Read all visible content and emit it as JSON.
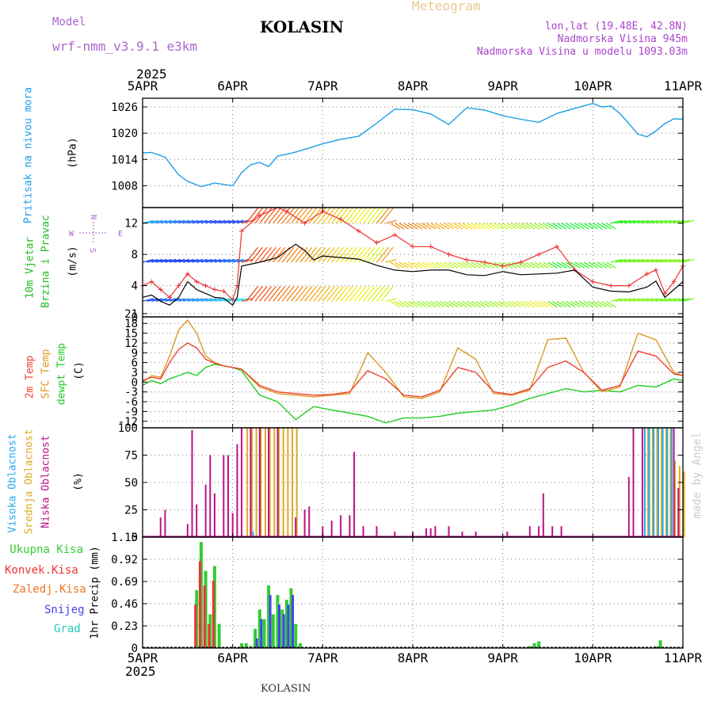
{
  "header": {
    "model_label": "Model",
    "model_name": "wrf-nmm_v3.9.1 e3km",
    "location_title": "KOLASIN",
    "meteogram_label": "Meteogram",
    "lonlat": "lon,lat (19.48E, 42.8N)",
    "altitude": "Nadmorska Visina 945m",
    "model_altitude": "Nadmorska Visina u modelu 1093.03m",
    "year": "2025",
    "footer_location": "KOLASIN",
    "credit": "made by Angel"
  },
  "colors": {
    "pressure": "#1e9ee6",
    "wind_label": "#22bb22",
    "gust": "#ee3333",
    "mean_wind": "#000000",
    "temp2m": "#ee4433",
    "sfc_temp": "#dd9922",
    "dewpt": "#22cc22",
    "cloud_high": "#22aaee",
    "cloud_mid": "#ddaa22",
    "cloud_low": "#bb1188",
    "precip_total": "#33cc33",
    "precip_conv": "#ee3333",
    "precip_frz": "#ee7722",
    "snow": "#4444ee",
    "hail": "#22ccbb"
  },
  "chart_data": [
    {
      "type": "line",
      "title": "Pritisak na nivou mora",
      "ylabel": "(hPa)",
      "x_ticks": [
        "5APR",
        "6APR",
        "7APR",
        "8APR",
        "9APR",
        "10APR",
        "11APR"
      ],
      "ylim": [
        1003,
        1028
      ],
      "y_ticks": [
        "1008",
        "1014",
        "1020",
        "1026"
      ],
      "series": [
        {
          "name": "Pritisak na nivou mora",
          "x": [
            0,
            0.1,
            0.25,
            0.4,
            0.5,
            0.65,
            0.8,
            1.0,
            1.1,
            1.2,
            1.3,
            1.4,
            1.5,
            1.6,
            1.7,
            1.8,
            2.0,
            2.2,
            2.4,
            2.6,
            2.8,
            3.0,
            3.2,
            3.4,
            3.6,
            3.8,
            4.0,
            4.2,
            4.4,
            4.6,
            4.8,
            5.0,
            5.1,
            5.2,
            5.3,
            5.4,
            5.5,
            5.6,
            5.7,
            5.8,
            5.9,
            6.0
          ],
          "values": [
            1015.5,
            1015.6,
            1014.5,
            1010.5,
            1009.0,
            1007.8,
            1008.6,
            1008.0,
            1011.0,
            1012.8,
            1013.3,
            1012.4,
            1014.8,
            1015.2,
            1015.7,
            1016.3,
            1017.6,
            1018.6,
            1019.3,
            1022.3,
            1025.5,
            1025.4,
            1024.4,
            1022.0,
            1025.8,
            1025.3,
            1024.0,
            1023.2,
            1022.5,
            1024.5,
            1025.7,
            1026.8,
            1026.0,
            1026.2,
            1024.5,
            1022.2,
            1019.8,
            1019.2,
            1020.5,
            1022.2,
            1023.3,
            1023.2
          ]
        }
      ]
    },
    {
      "type": "line",
      "title": "10m Vjetar Brzina i Pravac",
      "ylabel": "(m/s)",
      "ylim": [
        0,
        14
      ],
      "y_ticks": [
        "0",
        "4",
        "8",
        "12"
      ],
      "compass": [
        "N",
        "S",
        "W",
        "E"
      ],
      "series": [
        {
          "name": "Mean wind",
          "x": [
            0,
            0.1,
            0.2,
            0.3,
            0.4,
            0.5,
            0.6,
            0.7,
            0.8,
            0.9,
            1.0,
            1.05,
            1.1,
            1.3,
            1.5,
            1.6,
            1.7,
            1.8,
            1.9,
            2.0,
            2.2,
            2.4,
            2.6,
            2.8,
            3.0,
            3.2,
            3.4,
            3.6,
            3.8,
            4.0,
            4.2,
            4.4,
            4.6,
            4.8,
            5.0,
            5.2,
            5.4,
            5.6,
            5.7,
            5.8,
            5.9,
            6.0
          ],
          "values": [
            2.5,
            2.8,
            2.0,
            1.5,
            2.5,
            4.5,
            3.5,
            3.0,
            2.5,
            2.4,
            1.5,
            2.5,
            6.5,
            7.0,
            7.6,
            8.5,
            9.3,
            8.5,
            7.3,
            7.8,
            7.6,
            7.4,
            6.6,
            6.0,
            5.8,
            6.0,
            6.0,
            5.4,
            5.3,
            5.8,
            5.4,
            5.5,
            5.6,
            6.0,
            3.8,
            3.3,
            3.2,
            3.8,
            4.6,
            2.5,
            3.5,
            4.5
          ]
        },
        {
          "name": "Gust",
          "x": [
            0,
            0.1,
            0.2,
            0.3,
            0.4,
            0.5,
            0.6,
            0.7,
            0.8,
            0.9,
            1.0,
            1.05,
            1.1,
            1.3,
            1.5,
            1.6,
            1.8,
            2.0,
            2.2,
            2.4,
            2.6,
            2.8,
            3.0,
            3.2,
            3.4,
            3.6,
            3.8,
            4.0,
            4.2,
            4.4,
            4.6,
            4.8,
            5.0,
            5.2,
            5.4,
            5.6,
            5.7,
            5.8,
            5.9,
            6.0
          ],
          "values": [
            4.0,
            4.5,
            3.5,
            2.5,
            4.0,
            5.5,
            4.5,
            4.0,
            3.5,
            3.3,
            2.2,
            4.0,
            11.0,
            13.0,
            14.0,
            13.5,
            12.0,
            13.5,
            12.5,
            11.0,
            9.5,
            10.5,
            9.0,
            9.0,
            8.0,
            7.3,
            7.0,
            6.5,
            7.0,
            8.0,
            9.0,
            6.0,
            4.5,
            4.0,
            4.0,
            5.5,
            6.0,
            3.0,
            4.5,
            6.5
          ]
        }
      ]
    },
    {
      "type": "line",
      "title": "2m Temp / SFC Temp / dewpt Temp",
      "ylabel": "(C)",
      "ylim": [
        -14,
        20
      ],
      "y_ticks": [
        "-12",
        "-9",
        "-6",
        "-3",
        "0",
        "3",
        "6",
        "9",
        "12",
        "15",
        "18",
        "21"
      ],
      "series": [
        {
          "name": "2m Temp",
          "x": [
            0,
            0.1,
            0.2,
            0.3,
            0.4,
            0.5,
            0.6,
            0.7,
            0.8,
            0.9,
            1.0,
            1.1,
            1.3,
            1.5,
            1.7,
            1.9,
            2.1,
            2.3,
            2.5,
            2.7,
            2.9,
            3.1,
            3.3,
            3.5,
            3.7,
            3.9,
            4.1,
            4.3,
            4.5,
            4.7,
            4.9,
            5.1,
            5.3,
            5.5,
            5.7,
            5.9,
            6.0
          ],
          "values": [
            0.5,
            1.5,
            1.0,
            6.0,
            10.0,
            12.0,
            10.5,
            7.0,
            5.8,
            5.0,
            4.5,
            4.0,
            -1.0,
            -3.0,
            -3.5,
            -4.0,
            -3.8,
            -3.0,
            3.5,
            1.0,
            -4.0,
            -4.5,
            -2.5,
            4.5,
            3.0,
            -3.0,
            -3.8,
            -2.0,
            4.5,
            6.5,
            3.0,
            -2.5,
            -1.0,
            9.5,
            8.0,
            2.5,
            2.0
          ]
        },
        {
          "name": "SFC Temp",
          "x": [
            0,
            0.1,
            0.2,
            0.3,
            0.4,
            0.5,
            0.6,
            0.7,
            0.8,
            0.9,
            1.0,
            1.1,
            1.3,
            1.5,
            1.7,
            1.9,
            2.1,
            2.3,
            2.5,
            2.7,
            2.9,
            3.1,
            3.3,
            3.5,
            3.7,
            3.9,
            4.1,
            4.3,
            4.5,
            4.7,
            4.9,
            5.1,
            5.3,
            5.5,
            5.7,
            5.9,
            6.0
          ],
          "values": [
            0.0,
            2.0,
            1.5,
            8.0,
            16.0,
            19.0,
            15.0,
            8.0,
            6.0,
            5.0,
            4.5,
            4.0,
            -1.5,
            -3.5,
            -4.0,
            -4.5,
            -4.0,
            -3.5,
            9.0,
            3.0,
            -4.5,
            -5.0,
            -3.0,
            10.5,
            7.0,
            -3.5,
            -4.0,
            -2.5,
            13.0,
            13.5,
            3.0,
            -3.0,
            -1.5,
            15.0,
            13.0,
            3.0,
            2.0
          ]
        },
        {
          "name": "dewpt Temp",
          "x": [
            0,
            0.1,
            0.2,
            0.3,
            0.4,
            0.5,
            0.6,
            0.7,
            0.8,
            0.9,
            1.0,
            1.1,
            1.3,
            1.5,
            1.7,
            1.9,
            2.1,
            2.3,
            2.5,
            2.7,
            2.9,
            3.1,
            3.3,
            3.5,
            3.7,
            3.9,
            4.1,
            4.3,
            4.5,
            4.7,
            4.9,
            5.1,
            5.3,
            5.5,
            5.7,
            5.9,
            6.0
          ],
          "values": [
            -1.0,
            0.5,
            -0.5,
            1.0,
            2.0,
            3.0,
            2.0,
            4.5,
            5.5,
            5.0,
            4.5,
            3.5,
            -4.0,
            -6.0,
            -11.5,
            -7.5,
            -8.5,
            -9.5,
            -10.5,
            -12.5,
            -11.0,
            -11.0,
            -10.5,
            -9.5,
            -9.0,
            -8.5,
            -7.0,
            -5.0,
            -3.5,
            -2.0,
            -3.0,
            -2.5,
            -3.0,
            -1.0,
            -1.5,
            1.0,
            0.5
          ]
        }
      ]
    },
    {
      "type": "bar",
      "title": "Visoka / Srednja / Niska Oblacnost",
      "ylabel": "(%)",
      "ylim": [
        0,
        100
      ],
      "y_ticks": [
        "0",
        "25",
        "50",
        "75",
        "100"
      ],
      "series": [
        {
          "name": "Niska Oblacnost",
          "x": [
            0.2,
            0.25,
            0.5,
            0.55,
            0.6,
            0.7,
            0.75,
            0.8,
            0.9,
            0.95,
            1.0,
            1.05,
            1.1,
            1.2,
            1.3,
            1.4,
            1.5,
            1.7,
            1.8,
            1.85,
            2.0,
            2.1,
            2.2,
            2.3,
            2.35,
            2.45,
            2.6,
            2.8,
            3.0,
            3.15,
            3.2,
            3.25,
            3.4,
            3.55,
            3.7,
            4.05,
            4.3,
            4.4,
            4.45,
            4.55,
            4.65,
            5.4,
            5.45,
            5.55,
            5.9,
            5.95
          ],
          "values": [
            18,
            25,
            12,
            98,
            30,
            48,
            75,
            40,
            75,
            75,
            22,
            85,
            100,
            100,
            100,
            100,
            100,
            18,
            25,
            28,
            10,
            15,
            20,
            20,
            78,
            10,
            10,
            5,
            5,
            8,
            8,
            10,
            10,
            5,
            5,
            5,
            10,
            10,
            40,
            10,
            10,
            55,
            100,
            100,
            100,
            45
          ]
        },
        {
          "name": "Srednja Oblacnost",
          "x": [
            1.15,
            1.2,
            1.25,
            1.3,
            1.35,
            1.4,
            1.45,
            1.5,
            1.55,
            1.6,
            1.65,
            1.7,
            5.6,
            5.65,
            5.7,
            5.75,
            5.8,
            5.85,
            5.9,
            5.95,
            6.0
          ],
          "values": [
            100,
            100,
            100,
            100,
            100,
            100,
            100,
            100,
            100,
            100,
            100,
            100,
            100,
            100,
            100,
            100,
            100,
            100,
            70,
            65,
            60
          ]
        },
        {
          "name": "Visoka Oblacnost",
          "x": [
            1.2,
            5.55,
            5.6,
            5.65,
            5.7,
            5.75,
            5.8,
            5.85
          ],
          "values": [
            5,
            100,
            100,
            100,
            100,
            100,
            100,
            100
          ]
        }
      ]
    },
    {
      "type": "bar",
      "title": "1hr Precip",
      "ylabel": "1hr Precip (mm)",
      "ylim": [
        0,
        1.15
      ],
      "y_ticks": [
        "0",
        "0.23",
        "0.46",
        "0.69",
        "0.92",
        "1.15"
      ],
      "x_ticks": [
        "5APR",
        "6APR",
        "7APR",
        "8APR",
        "9APR",
        "10APR",
        "11APR"
      ],
      "series": [
        {
          "name": "Ukupna Kisa",
          "x": [
            0.6,
            0.65,
            0.7,
            0.75,
            0.8,
            0.85,
            1.1,
            1.15,
            1.2,
            1.25,
            1.3,
            1.35,
            1.4,
            1.45,
            1.5,
            1.55,
            1.6,
            1.65,
            1.7,
            1.75,
            4.3,
            4.35,
            4.4,
            5.7,
            5.75
          ],
          "values": [
            0.6,
            1.1,
            0.8,
            0.35,
            0.85,
            0.25,
            0.05,
            0.05,
            0.02,
            0.2,
            0.4,
            0.3,
            0.65,
            0.35,
            0.55,
            0.4,
            0.5,
            0.62,
            0.25,
            0.05,
            0.02,
            0.05,
            0.07,
            0.02,
            0.08
          ]
        },
        {
          "name": "Konvek.Kisa",
          "x": [
            0.6,
            0.65,
            0.7,
            0.75,
            0.8
          ],
          "values": [
            0.45,
            0.9,
            0.65,
            0.25,
            0.7
          ]
        },
        {
          "name": "Snijeg",
          "x": [
            1.25,
            1.3,
            1.4,
            1.5,
            1.55,
            1.6,
            1.65
          ],
          "values": [
            0.1,
            0.3,
            0.55,
            0.45,
            0.35,
            0.45,
            0.55
          ]
        }
      ]
    }
  ],
  "labels": {
    "pressure_axis": "Pritisak na nivou mora",
    "pressure_unit": "(hPa)",
    "wind_1": "10m Vjetar",
    "wind_2": "Brzina i Pravac",
    "wind_unit": "(m/s)",
    "temp_2m": "2m Temp",
    "temp_sfc": "SFC Temp",
    "temp_dew": "dewpt Temp",
    "temp_unit": "(C)",
    "cloud_high": "Visoka Oblacnost",
    "cloud_mid": "Srednja Oblacnost",
    "cloud_low": "Niska Oblacnost",
    "cloud_unit": "(%)",
    "precip_unit": "1hr Precip (mm)",
    "legend_total": "Ukupna Kisa",
    "legend_conv": "Konvek.Kisa",
    "legend_frz": "Zaledj.Kisa",
    "legend_snow": "Snijeg",
    "legend_hail": "Grad"
  }
}
